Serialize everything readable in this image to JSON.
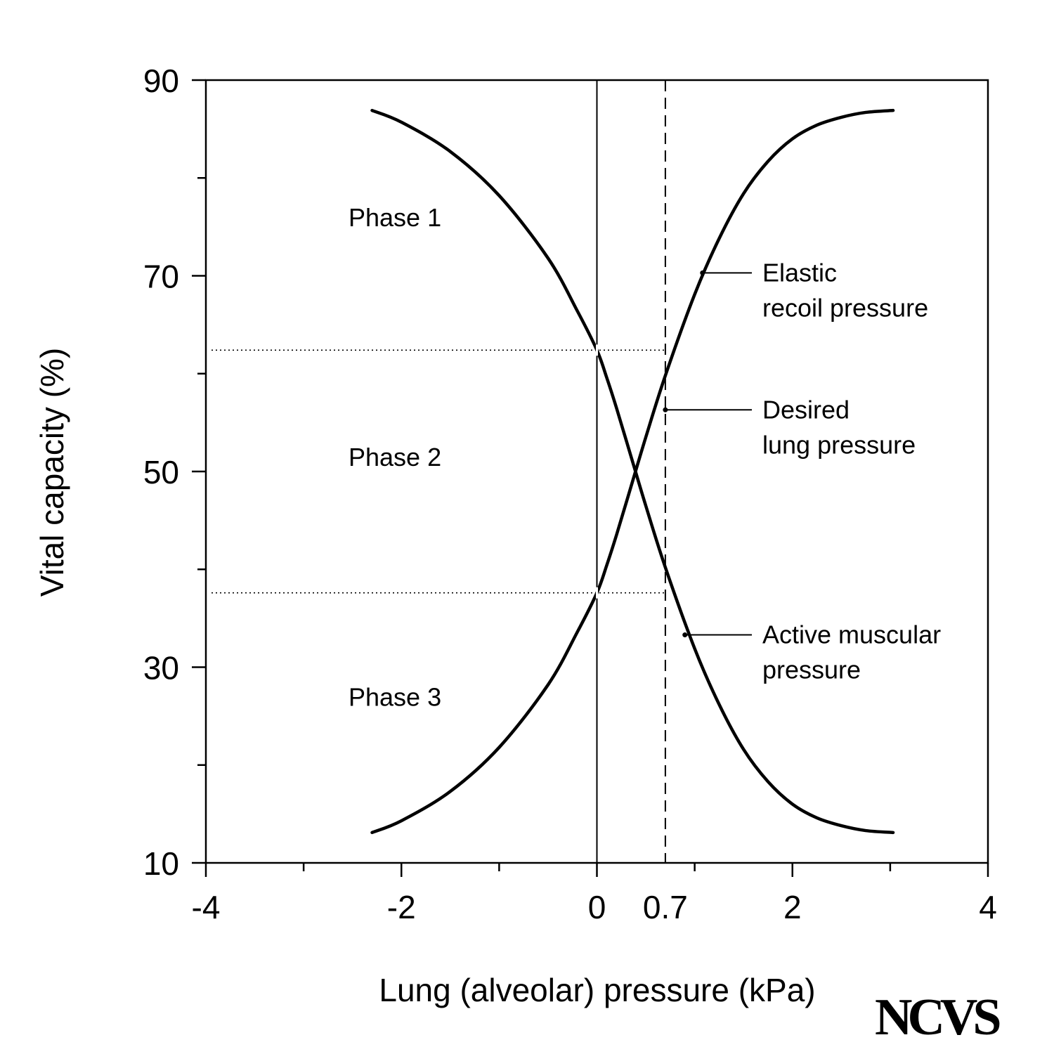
{
  "chart_data": {
    "type": "line",
    "xlabel": "Lung (alveolar) pressure (kPa)",
    "ylabel": "Vital capacity (%)",
    "xlim": [
      -4,
      4
    ],
    "ylim": [
      10,
      90
    ],
    "x_ticks": [
      {
        "value": -4,
        "label": "-4"
      },
      {
        "value": -2,
        "label": "-2"
      },
      {
        "value": 0,
        "label": "0"
      },
      {
        "value": 0.7,
        "label": "0.7"
      },
      {
        "value": 2,
        "label": "2"
      },
      {
        "value": 4,
        "label": "4"
      }
    ],
    "x_minor_ticks": [
      -3,
      -1,
      1,
      3
    ],
    "y_ticks": [
      {
        "value": 10,
        "label": "10"
      },
      {
        "value": 30,
        "label": "30"
      },
      {
        "value": 50,
        "label": "50"
      },
      {
        "value": 70,
        "label": "70"
      },
      {
        "value": 90,
        "label": "90"
      }
    ],
    "y_minor_ticks": [
      20,
      40,
      60,
      80
    ],
    "grid": false,
    "series": [
      {
        "key": "elastic-recoil",
        "x": [
          -2.3,
          -2.0,
          -1.5,
          -1.0,
          -0.5,
          -0.2,
          0.0,
          0.1,
          0.2,
          0.35,
          0.5,
          0.7,
          1.0,
          1.25,
          1.5,
          1.75,
          2.0,
          2.25,
          2.5,
          2.75,
          3.03
        ],
        "y": [
          13.1,
          14.3,
          17.3,
          21.8,
          28.2,
          33.6,
          37.6,
          40.4,
          43.5,
          48.5,
          53.5,
          59.8,
          68.1,
          73.8,
          78.4,
          81.7,
          84.0,
          85.4,
          86.2,
          86.7,
          86.9
        ]
      },
      {
        "key": "active-muscular",
        "x": [
          -2.3,
          -2.0,
          -1.5,
          -1.0,
          -0.5,
          -0.2,
          0.0,
          0.1,
          0.2,
          0.35,
          0.5,
          0.7,
          1.0,
          1.25,
          1.5,
          1.75,
          2.0,
          2.25,
          2.5,
          2.75,
          3.03
        ],
        "y": [
          86.9,
          85.7,
          82.7,
          78.2,
          71.8,
          66.4,
          62.4,
          59.6,
          56.5,
          51.5,
          46.5,
          40.2,
          31.9,
          26.2,
          21.6,
          18.3,
          16.0,
          14.6,
          13.8,
          13.3,
          13.1
        ]
      }
    ],
    "gaps": {
      "elastic-recoil": [
        0.0,
        0.0,
        0.0
      ],
      "active-muscular": [
        0.0,
        0.0,
        0.0
      ]
    },
    "reference_lines": {
      "zero_pressure_x": 0,
      "desired_pressure_x": 0.7,
      "phase_boundaries_y": [
        62.4,
        37.6
      ]
    },
    "phases": [
      {
        "label": "Phase 1",
        "y": 76
      },
      {
        "label": "Phase 2",
        "y": 51.5
      },
      {
        "label": "Phase 3",
        "y": 27
      }
    ],
    "annotations": [
      {
        "lines": [
          "Elastic",
          "recoil pressure"
        ],
        "point": {
          "x": 1.08,
          "y": 70.3
        }
      },
      {
        "lines": [
          "Desired",
          "lung pressure"
        ],
        "point": {
          "x": 0.7,
          "y": 56.3
        }
      },
      {
        "lines": [
          "Active muscular",
          "pressure"
        ],
        "point": {
          "x": 0.9,
          "y": 33.3
        }
      }
    ]
  },
  "logo": "NCVS"
}
